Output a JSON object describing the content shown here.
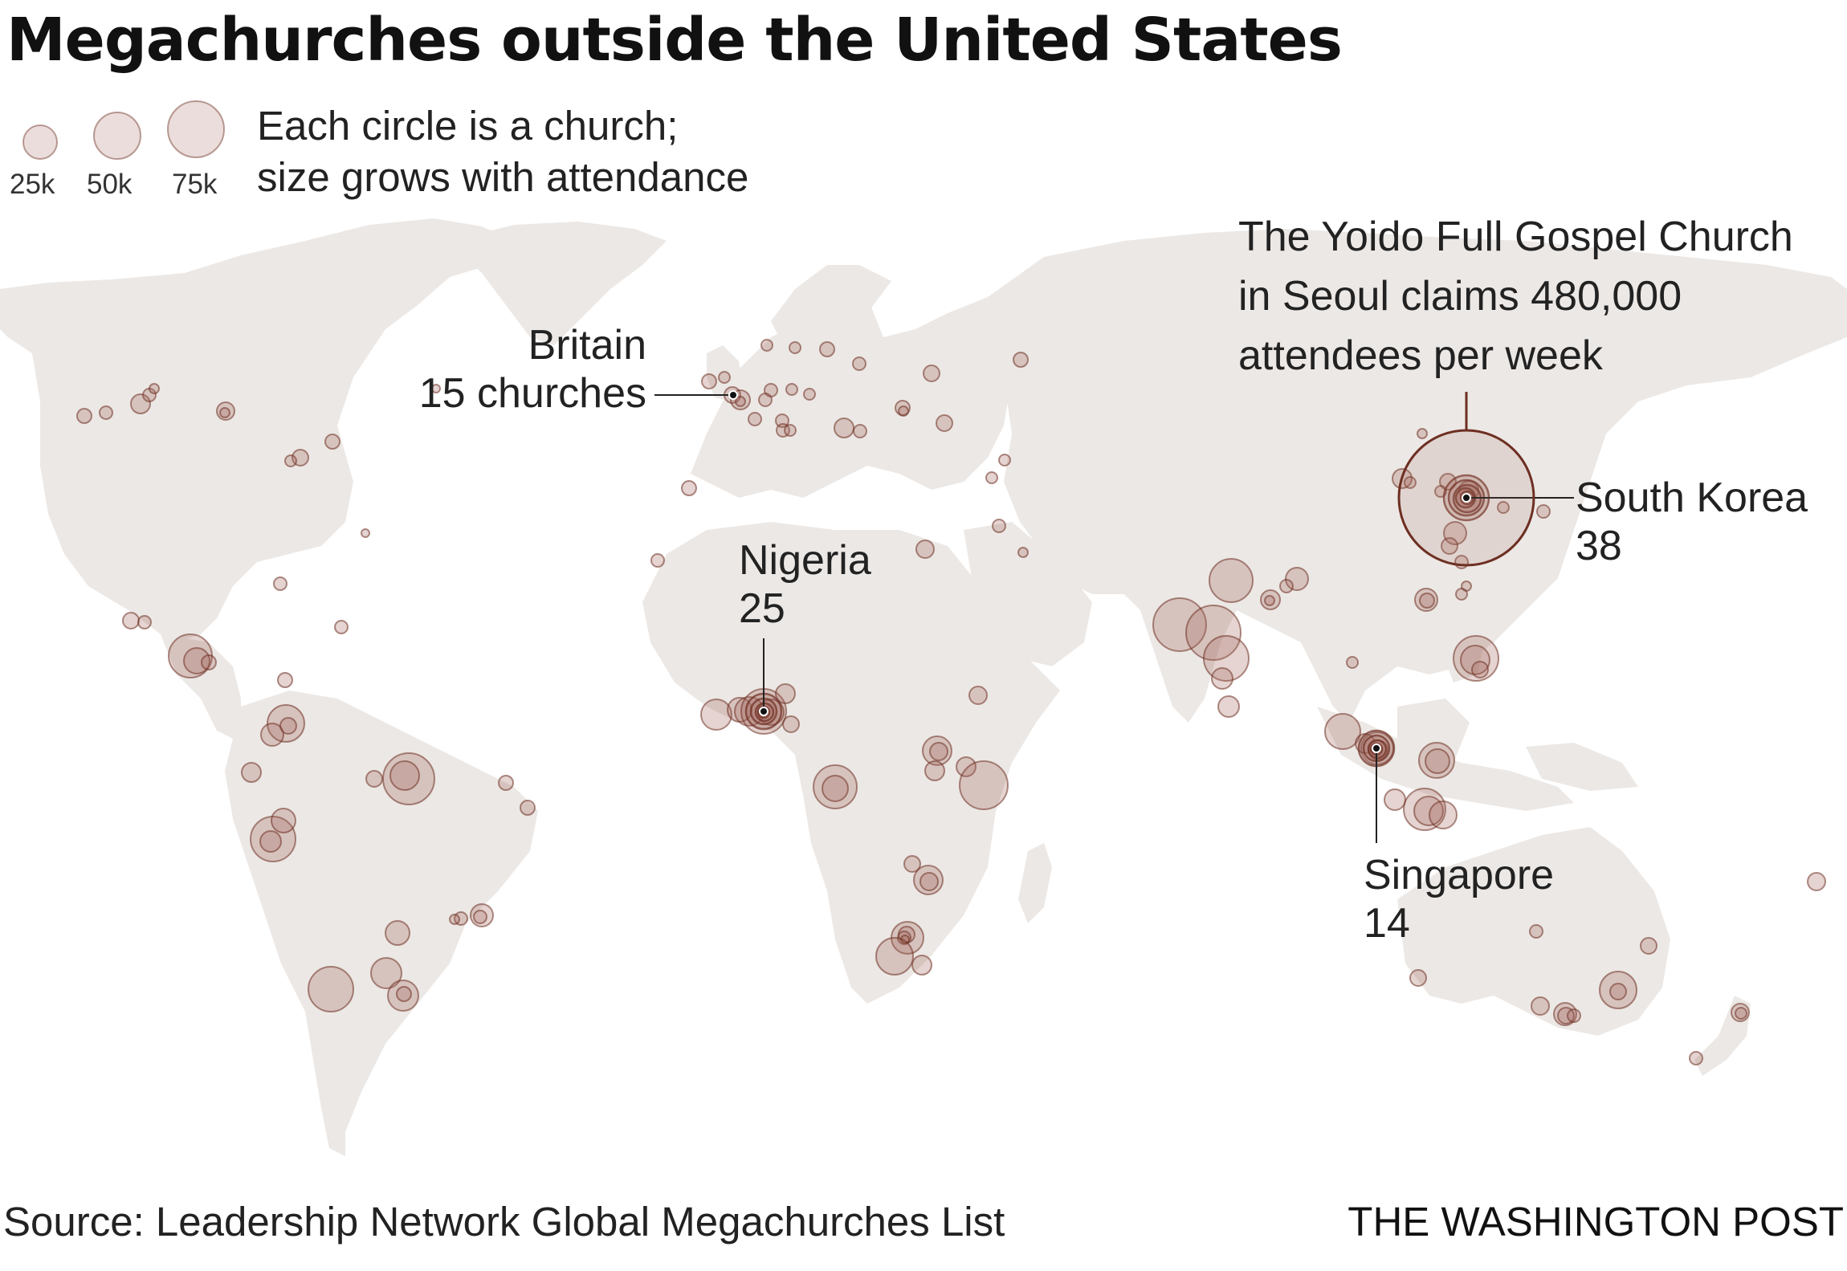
{
  "title": "Megachurches outside the United States",
  "legend": {
    "line1": "Each circle is a church;",
    "line2": "size grows with attendance",
    "sizes": [
      {
        "label": "25k",
        "attendance": 25000
      },
      {
        "label": "50k",
        "attendance": 50000
      },
      {
        "label": "75k",
        "attendance": 75000
      }
    ]
  },
  "annotations": {
    "britain": {
      "line1": "Britain",
      "line2": "15 churches"
    },
    "nigeria": {
      "line1": "Nigeria",
      "line2": "25"
    },
    "south_korea": {
      "line1": "South Korea",
      "line2": "38"
    },
    "singapore": {
      "line1": "Singapore",
      "line2": "14"
    },
    "yoido": {
      "line1": "The Yoido Full Gospel Church",
      "line2": "in Seoul claims 480,000",
      "line3": "attendees per week"
    }
  },
  "source": "Source: Leadership Network Global Megachurches List",
  "credit": "THE WASHINGTON POST",
  "colors": {
    "land": "#ece8e5",
    "circle_fill": "#a0655a",
    "circle_stroke": "#6d2f22",
    "leader_line": "#6d2f22"
  }
}
